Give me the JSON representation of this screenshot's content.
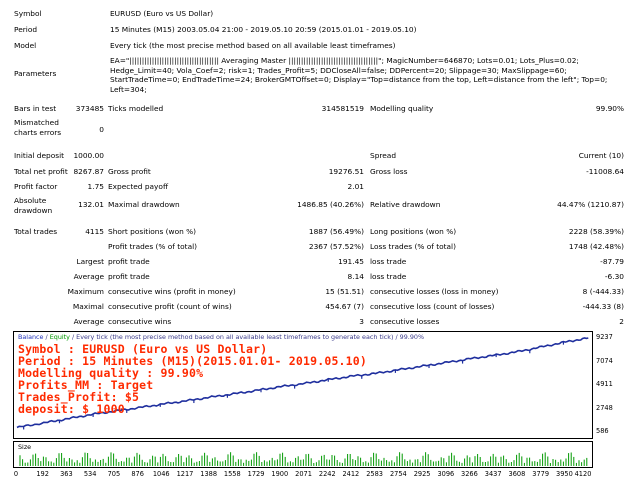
{
  "report": {
    "symbol_label": "Symbol",
    "symbol_value": "EURUSD (Euro vs US Dollar)",
    "period_label": "Period",
    "period_value": "15 Minutes (M15) 2003.05.04 21:00 - 2019.05.10 20:59 (2015.01.01 - 2019.05.10)",
    "model_label": "Model",
    "model_value": "Every tick (the most precise method based on all available least timeframes)",
    "parameters_label": "Parameters",
    "parameters_value": "EA=\"||||||||||||||||||||||||||||||||||||        Averaging Master        ||||||||||||||||||||||||||||||||||||\"; MagicNumber=646870; Lots=0.01; Lots_Plus=0.02; Hedge_Limit=40; Vola_Coef=2; risk=1; Trades_Profit=5; DDCloseAll=false; DDPercent=20; Slippage=30; MaxSlippage=60; StartTradeTime=0; EndTradeTime=24; BrokerGMTOffset=0; Display=\"Top=distance from the top, Left=distance from the left\"; Top=0; Left=304;",
    "bars_label": "Bars in test",
    "bars_value": "373485",
    "ticks_label": "Ticks modelled",
    "ticks_value": "314581519",
    "quality_label": "Modelling quality",
    "quality_value": "99.90%",
    "mismatch_label": "Mismatched charts errors",
    "mismatch_value": "0",
    "initial_label": "Initial deposit",
    "initial_value": "1000.00",
    "spread_label": "Spread",
    "spread_value": "Current (10)",
    "netprofit_label": "Total net profit",
    "netprofit_value": "8267.87",
    "grossprofit_label": "Gross profit",
    "grossprofit_value": "19276.51",
    "grossloss_label": "Gross loss",
    "grossloss_value": "-11008.64",
    "pf_label": "Profit factor",
    "pf_value": "1.75",
    "payoff_label": "Expected payoff",
    "payoff_value": "2.01",
    "absdd_label": "Absolute drawdown",
    "absdd_value": "132.01",
    "maxdd_label": "Maximal drawdown",
    "maxdd_value": "1486.85 (40.26%)",
    "reldd_label": "Relative drawdown",
    "reldd_value": "44.47% (1210.87)",
    "trades_label": "Total trades",
    "trades_value": "4115",
    "short_label": "Short positions (won %)",
    "short_value": "1887 (56.49%)",
    "long_label": "Long positions (won %)",
    "long_value": "2228 (58.39%)",
    "ptrades_label": "Profit trades (% of total)",
    "ptrades_value": "2367 (57.52%)",
    "ltrades_label": "Loss trades (% of total)",
    "ltrades_value": "1748 (42.48%)",
    "largest_label": "Largest",
    "lpt_label": "profit trade",
    "lpt_value": "191.45",
    "llt_label": "loss trade",
    "llt_value": "-87.79",
    "average_label": "Average",
    "apt_label": "profit trade",
    "apt_value": "8.14",
    "alt_label": "loss trade",
    "alt_value": "-6.30",
    "maximum_label": "Maximum",
    "mcw_label": "consecutive wins (profit in money)",
    "mcw_value": "15 (51.51)",
    "mcl_label": "consecutive losses (loss in money)",
    "mcl_value": "8 (-444.33)",
    "maximal_label": "Maximal",
    "mcp_label": "consecutive profit (count of wins)",
    "mcp_value": "454.67 (7)",
    "mcll_label": "consecutive loss (count of losses)",
    "mcll_value": "-444.33 (8)",
    "average2_label": "Average",
    "acw_label": "consecutive wins",
    "acw_value": "3",
    "acl_label": "consecutive losses",
    "acl_value": "2"
  },
  "chart": {
    "legend_balance": "Balance",
    "legend_sep": " / ",
    "legend_equity": "Equity",
    "legend_rest": " / Every tick (the most precise method based on all available least timeframes to generate each tick) / 99.90%",
    "overlay_lines": [
      "Symbol : EURUSD (Euro vs US Dollar)",
      "Period : 15 Minutes (M15)(2015.01.01- 2019.05.10)",
      "Modelling quality : 99.90%",
      "Profits_MM : Target",
      "Trades_Profit: $5",
      "deposit: $ 1000"
    ],
    "overlay_color": "#ff2a00",
    "balance_color": "#1f2f9e",
    "size_label": "Size",
    "size_color": "#009900"
  },
  "chart_data": {
    "type": "line",
    "x_ticks": [
      "0",
      "192",
      "363",
      "534",
      "705",
      "876",
      "1046",
      "1217",
      "1388",
      "1558",
      "1729",
      "1900",
      "2071",
      "2242",
      "2412",
      "2583",
      "2754",
      "2925",
      "3096",
      "3266",
      "3437",
      "3608",
      "3779",
      "3950",
      "4120"
    ],
    "y_ticks": [
      "9237",
      "7074",
      "4911",
      "2748",
      "586"
    ],
    "ylim": [
      586,
      9237
    ],
    "xlim": [
      0,
      4120
    ],
    "series": [
      {
        "name": "Balance",
        "x": [
          0,
          192,
          363,
          534,
          705,
          876,
          1046,
          1217,
          1388,
          1558,
          1729,
          1900,
          2071,
          2242,
          2412,
          2583,
          2754,
          2925,
          3096,
          3266,
          3437,
          3608,
          3779,
          3950,
          4115
        ],
        "values": [
          1000,
          1420,
          1800,
          2190,
          2510,
          2820,
          3150,
          3450,
          3780,
          4090,
          4420,
          4760,
          5050,
          5400,
          5720,
          5980,
          6320,
          6650,
          6990,
          7330,
          7640,
          7980,
          8420,
          8870,
          9237
        ]
      }
    ]
  }
}
